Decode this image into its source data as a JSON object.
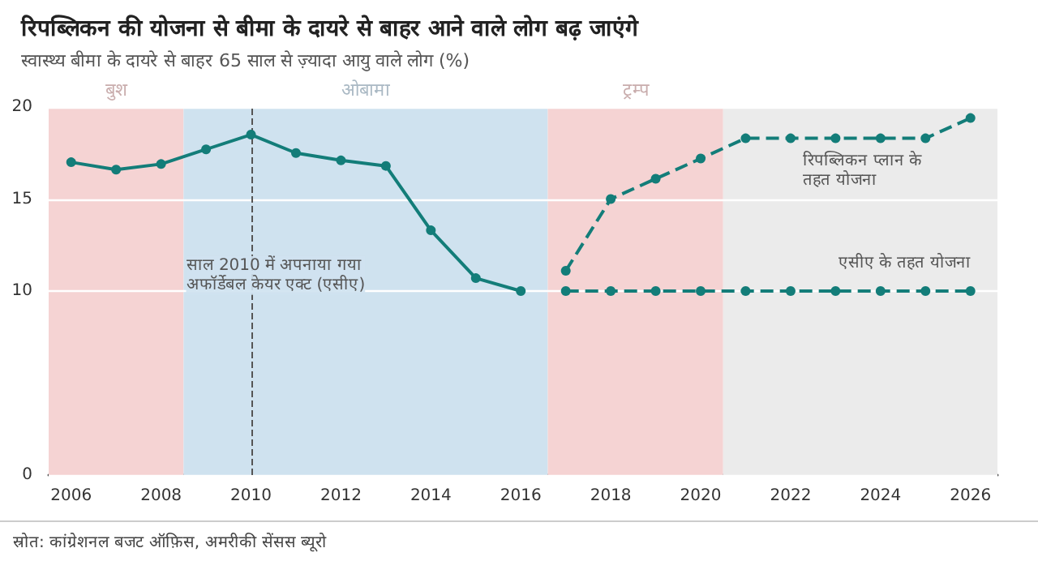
{
  "chart_data": {
    "type": "line",
    "title": "रिपब्लिकन की योजना से बीमा के दायरे से बाहर आने वाले लोग बढ़ जाएंगे",
    "subtitle": "स्वास्थ्य बीमा के दायरे से बाहर 65 साल से ज़्यादा आयु वाले लोग (%)",
    "series": [
      {
        "color": "#137d79",
        "line_style": "solid",
        "x": [
          2006,
          2007,
          2008,
          2009,
          2010,
          2011,
          2012,
          2013,
          2014,
          2015,
          2016
        ],
        "values": [
          17.0,
          16.6,
          16.9,
          17.7,
          18.5,
          17.5,
          17.1,
          16.8,
          13.3,
          10.7,
          10.0
        ]
      },
      {
        "name": "रिपब्लिकन प्लान के तहत योजना",
        "color": "#137d79",
        "line_style": "dashed",
        "x": [
          2017,
          2018,
          2019,
          2020,
          2021,
          2022,
          2023,
          2024,
          2025,
          2026
        ],
        "values": [
          11.1,
          15.0,
          16.1,
          17.2,
          18.3,
          18.3,
          18.3,
          18.3,
          18.3,
          19.4
        ]
      },
      {
        "name": "एसीए के तहत योजना",
        "color": "#137d79",
        "line_style": "dashed",
        "x": [
          2017,
          2018,
          2019,
          2020,
          2021,
          2022,
          2023,
          2024,
          2025,
          2026
        ],
        "values": [
          10,
          10,
          10,
          10,
          10,
          10,
          10,
          10,
          10,
          10
        ]
      }
    ],
    "xlim": [
      2005.5,
      2026.6
    ],
    "xticks": [
      2006,
      2008,
      2010,
      2012,
      2014,
      2016,
      2018,
      2020,
      2022,
      2024,
      2026
    ],
    "ylim": [
      0,
      20
    ],
    "yticks": [
      0,
      10,
      15,
      20
    ],
    "bands": [
      {
        "axis": "x",
        "from": 2005.5,
        "to": 2008.5,
        "label": "बुश",
        "color": "#f5d3d3"
      },
      {
        "axis": "x",
        "from": 2008.5,
        "to": 2016.6,
        "label": "ओबामा",
        "color": "#cfe2ef"
      },
      {
        "axis": "x",
        "from": 2016.6,
        "to": 2020.5,
        "label": "ट्रम्प",
        "color": "#f5d3d3"
      },
      {
        "axis": "x",
        "from": 2020.5,
        "to": 2026.6,
        "color": "#ebebeb"
      }
    ],
    "ref_lines": [
      {
        "axis": "x",
        "value": 2010,
        "label": "साल 2010 में अपनाया गया अफॉर्डेबल केयर एक्ट (एसीए)",
        "color": "#555555",
        "line_style": "dashed"
      }
    ],
    "annotations": [
      "स्रोत: कांग्रेशनल बजट ऑफ़िस, अमरीकी सेंसस ब्यूरो"
    ],
    "grid": "y",
    "legend": false,
    "marker": "circle"
  }
}
